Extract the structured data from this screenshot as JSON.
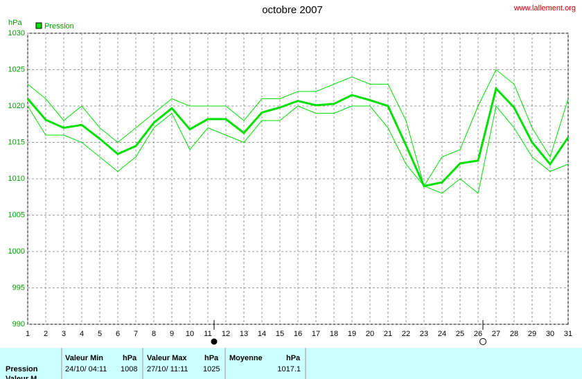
{
  "chart_data": {
    "type": "line",
    "title": "octobre 2007",
    "source": "www.lallement.org",
    "y_unit": "hPa",
    "x": [
      1,
      2,
      3,
      4,
      5,
      6,
      7,
      8,
      9,
      10,
      11,
      12,
      13,
      14,
      15,
      16,
      17,
      18,
      19,
      20,
      21,
      22,
      23,
      24,
      25,
      26,
      27,
      28,
      29,
      30,
      31
    ],
    "xlim": [
      1,
      31
    ],
    "xticks": [
      1,
      2,
      3,
      4,
      5,
      6,
      7,
      8,
      9,
      10,
      11,
      12,
      13,
      14,
      15,
      16,
      17,
      18,
      19,
      20,
      21,
      22,
      23,
      24,
      25,
      26,
      27,
      28,
      29,
      30,
      31
    ],
    "ylim": [
      990,
      1030
    ],
    "yticks": [
      990,
      995,
      1000,
      1005,
      1010,
      1015,
      1020,
      1025,
      1030
    ],
    "grid": true,
    "legend": "top-left",
    "series": [
      {
        "color": "#00e000",
        "values": [
          1023,
          1021,
          1018,
          1020,
          1017,
          1015,
          1017,
          1019,
          1021,
          1020,
          1020,
          1020,
          1018,
          1021,
          1021,
          1022,
          1022,
          1023,
          1024,
          1023,
          1023,
          1018,
          1009,
          1013,
          1014,
          1020,
          1025,
          1023,
          1017,
          1013,
          1021
        ]
      },
      {
        "name": "Pression",
        "color": "#00e000",
        "values": [
          1021,
          1018.1,
          1017,
          1017.4,
          1015.5,
          1013.4,
          1014.5,
          1017.7,
          1019.7,
          1016.8,
          1018.2,
          1018.2,
          1016.3,
          1019.1,
          1019.8,
          1020.7,
          1020.1,
          1020.3,
          1021.5,
          1020.8,
          1020,
          1014.6,
          1009,
          1009.5,
          1012.1,
          1012.5,
          1022.4,
          1019.8,
          1015,
          1012,
          1015.7
        ]
      },
      {
        "color": "#00e000",
        "values": [
          1020,
          1016,
          1016,
          1015,
          1013,
          1011,
          1013,
          1017,
          1019,
          1014,
          1017,
          1016,
          1015,
          1018,
          1018,
          1020,
          1019,
          1019,
          1020,
          1020,
          1017,
          1012,
          1009,
          1008,
          1010,
          1008,
          1020,
          1017,
          1013,
          1011,
          1012
        ]
      }
    ],
    "summary_table": {
      "headers": [
        "Valeur Min",
        "hPa",
        "Valeur Max",
        "hPa",
        "Moyenne",
        "hPa"
      ],
      "rows": [
        [
          "Pression",
          "24/10/ 04:11",
          "1008",
          "27/10/ 11:11",
          "1025",
          "1017.1"
        ],
        [
          "Valeur M"
        ]
      ]
    }
  }
}
